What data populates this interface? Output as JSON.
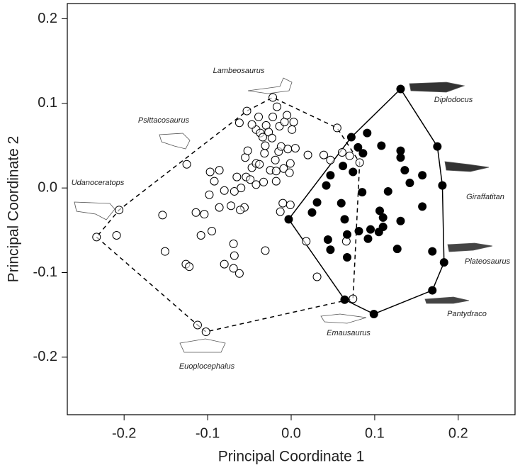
{
  "chart_data": {
    "type": "scatter",
    "xlabel": "Principal Coordinate 1",
    "ylabel": "Principal Coordinate 2",
    "xlim": [
      -0.268,
      0.268
    ],
    "ylim": [
      -0.268,
      0.218
    ],
    "xticks": [
      -0.2,
      -0.1,
      {
        "value": 0,
        "label": "0.0"
      },
      0.1,
      0.2
    ],
    "yticks": [
      -0.2,
      -0.1,
      {
        "value": 0,
        "label": "0.0"
      },
      0.1,
      0.2
    ],
    "grid": false,
    "series": [
      {
        "color": "#000000",
        "filled": false,
        "hull": "dashed",
        "x": [
          -0.233,
          -0.112,
          -0.102,
          0.074,
          0.082,
          0.055,
          -0.022,
          -0.053,
          -0.206,
          -0.209,
          -0.154,
          -0.151,
          -0.125,
          -0.126,
          -0.122,
          -0.114,
          -0.104,
          -0.108,
          -0.097,
          -0.095,
          -0.092,
          -0.08,
          -0.068,
          -0.08,
          -0.069,
          -0.069,
          -0.068,
          -0.062,
          -0.065,
          -0.06,
          -0.056,
          -0.072,
          -0.086,
          -0.061,
          -0.055,
          -0.054,
          -0.052,
          -0.047,
          -0.042,
          -0.042,
          -0.039,
          -0.037,
          -0.034,
          -0.031,
          -0.03,
          -0.027,
          -0.025,
          -0.023,
          -0.022,
          -0.019,
          -0.018,
          -0.018,
          -0.015,
          -0.014,
          -0.012,
          -0.009,
          -0.008,
          -0.005,
          -0.004,
          -0.002,
          -0.001,
          0.001,
          0.003,
          0.005,
          -0.032,
          -0.038,
          -0.049,
          -0.042,
          -0.033,
          -0.031,
          -0.013,
          -0.01,
          -0.001,
          0.02,
          0.018,
          0.031,
          0.039,
          0.047,
          0.061,
          0.07,
          0.066,
          -0.086,
          -0.098,
          -0.062,
          -0.047,
          -0.017
        ],
        "values": [
          -0.058,
          -0.162,
          -0.17,
          -0.131,
          0.03,
          0.071,
          0.107,
          0.091,
          -0.026,
          -0.056,
          -0.032,
          -0.075,
          0.028,
          -0.09,
          -0.093,
          -0.029,
          -0.031,
          -0.056,
          0.019,
          -0.051,
          0.008,
          -0.003,
          -0.004,
          -0.09,
          -0.095,
          -0.066,
          -0.08,
          -0.101,
          0.013,
          0.0,
          -0.023,
          -0.021,
          0.021,
          -0.026,
          0.036,
          0.013,
          0.044,
          0.024,
          0.029,
          0.069,
          0.084,
          0.065,
          0.06,
          0.05,
          0.074,
          0.066,
          0.021,
          0.059,
          0.084,
          0.033,
          0.02,
          0.008,
          0.043,
          0.073,
          0.049,
          0.023,
          0.078,
          0.086,
          0.046,
          0.018,
          0.029,
          0.069,
          0.078,
          0.047,
          0.041,
          0.028,
          0.01,
          0.004,
          0.007,
          -0.074,
          -0.028,
          -0.018,
          -0.02,
          0.039,
          -0.063,
          -0.105,
          0.039,
          0.033,
          0.042,
          0.038,
          -0.063,
          -0.023,
          -0.008,
          0.077,
          0.075,
          0.096
        ]
      },
      {
        "color": "#000000",
        "filled": true,
        "hull": "solid",
        "x": [
          0.131,
          0.175,
          0.181,
          0.183,
          0.169,
          0.099,
          0.064,
          -0.003,
          0.072,
          0.091,
          0.08,
          0.086,
          0.062,
          0.047,
          0.074,
          0.108,
          0.131,
          0.131,
          0.157,
          0.136,
          0.116,
          0.142,
          0.157,
          0.106,
          0.11,
          0.131,
          0.085,
          0.042,
          0.06,
          0.025,
          0.031,
          0.064,
          0.095,
          0.092,
          0.11,
          0.044,
          0.047,
          0.067,
          0.081,
          0.067,
          0.127,
          0.169,
          0.105
        ],
        "values": [
          0.117,
          0.049,
          0.003,
          -0.088,
          -0.121,
          -0.149,
          -0.132,
          -0.037,
          0.06,
          0.065,
          0.048,
          0.041,
          0.026,
          0.015,
          0.019,
          0.05,
          0.044,
          0.036,
          0.015,
          0.021,
          -0.004,
          0.006,
          -0.022,
          -0.027,
          -0.035,
          -0.039,
          -0.005,
          0.003,
          -0.018,
          -0.029,
          -0.017,
          -0.037,
          -0.049,
          -0.06,
          -0.046,
          -0.061,
          -0.073,
          -0.055,
          -0.051,
          -0.082,
          -0.072,
          -0.075,
          -0.052
        ]
      }
    ],
    "annotations": [
      "Lambeosaurus",
      "Psittacosaurus",
      "Udanoceratops",
      "Diplodocus",
      "Giraffatitan",
      "Plateosaurus",
      "Pantydraco",
      "Emausaurus",
      "Euoplocephalus"
    ]
  }
}
